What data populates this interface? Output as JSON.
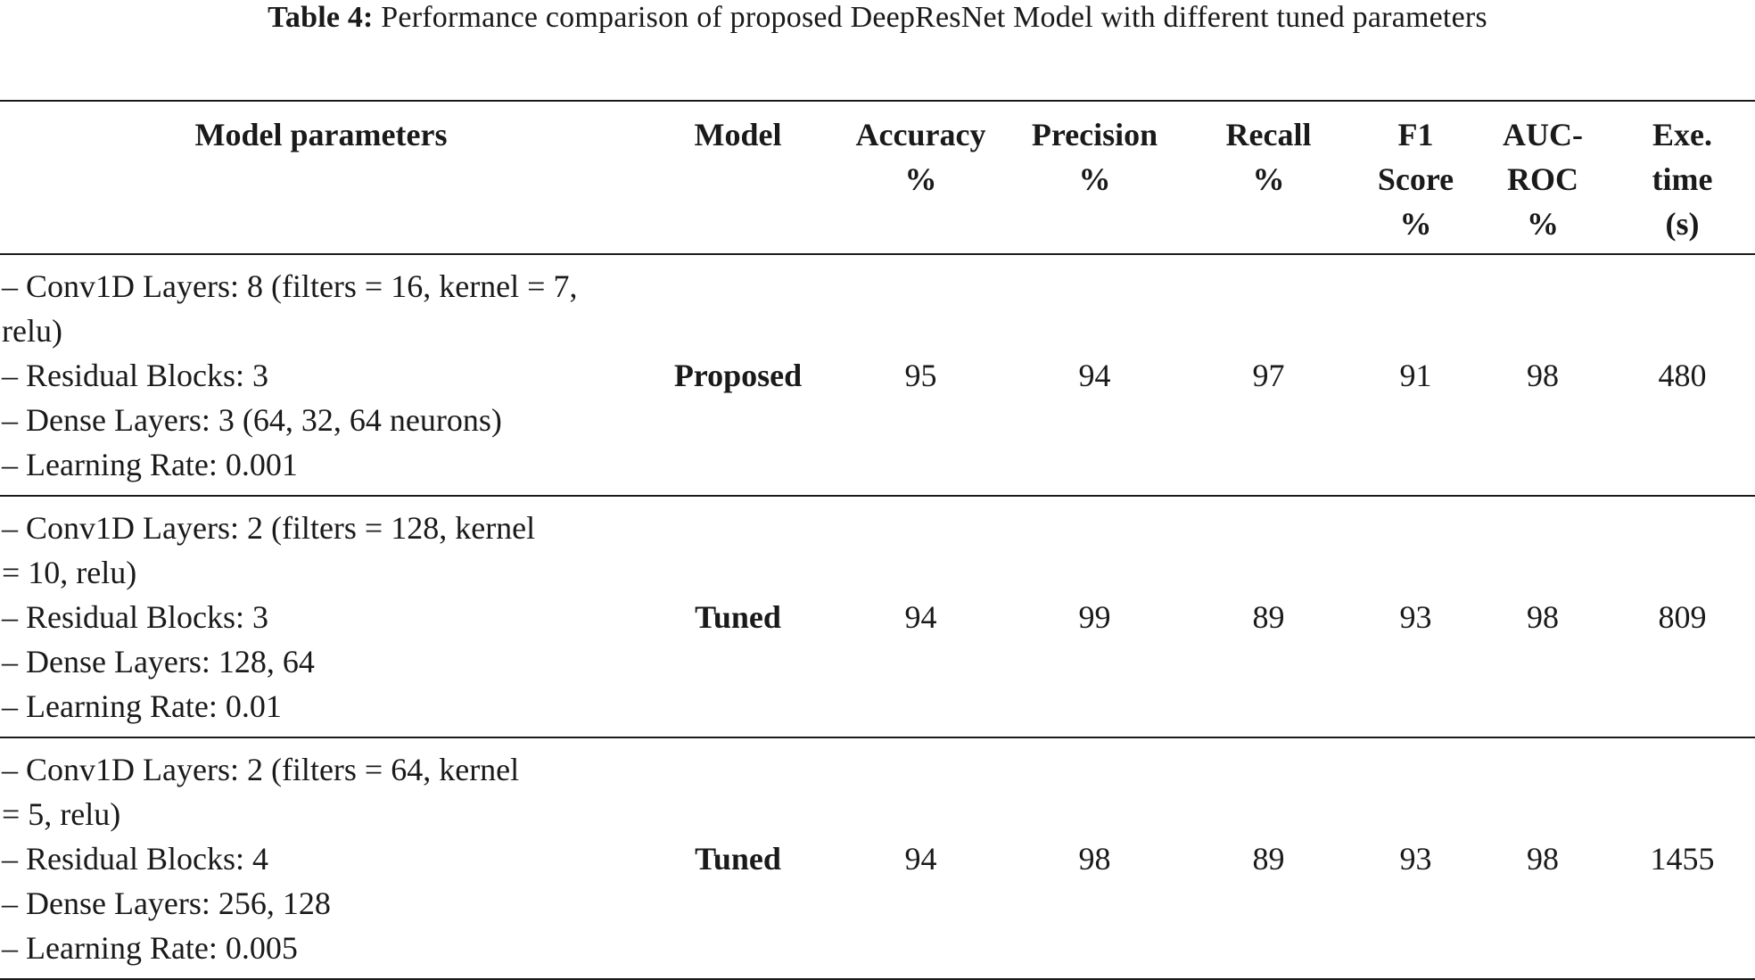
{
  "caption": {
    "label": "Table 4:",
    "text": "Performance comparison of proposed DeepResNet Model with different tuned parameters"
  },
  "table": {
    "headers": [
      [
        "Model parameters"
      ],
      [
        "Model"
      ],
      [
        "Accuracy",
        "%"
      ],
      [
        "Precision",
        "%"
      ],
      [
        "Recall",
        "%"
      ],
      [
        "F1",
        "Score",
        "%"
      ],
      [
        "AUC-",
        "ROC",
        "%"
      ],
      [
        "Exe.",
        "time",
        "(s)"
      ]
    ],
    "rows": [
      {
        "params": [
          "– Conv1D Layers: 8 (filters = 16, kernel = 7,",
          "relu)",
          "– Residual Blocks: 3",
          "– Dense Layers: 3 (64, 32, 64 neurons)",
          "– Learning Rate: 0.001"
        ],
        "model": "Proposed",
        "accuracy": "95",
        "precision": "94",
        "recall": "97",
        "f1": "91",
        "auc": "98",
        "time": "480"
      },
      {
        "params": [
          "– Conv1D Layers: 2 (filters = 128, kernel",
          "= 10, relu)",
          "– Residual Blocks: 3",
          "– Dense Layers: 128, 64",
          "– Learning Rate: 0.01"
        ],
        "model": "Tuned",
        "accuracy": "94",
        "precision": "99",
        "recall": "89",
        "f1": "93",
        "auc": "98",
        "time": "809"
      },
      {
        "params": [
          "– Conv1D Layers: 2 (filters = 64, kernel",
          "= 5, relu)",
          "– Residual Blocks: 4",
          "– Dense Layers: 256, 128",
          "– Learning Rate: 0.005"
        ],
        "model": "Tuned",
        "accuracy": "94",
        "precision": "98",
        "recall": "89",
        "f1": "93",
        "auc": "98",
        "time": "1455"
      }
    ]
  }
}
